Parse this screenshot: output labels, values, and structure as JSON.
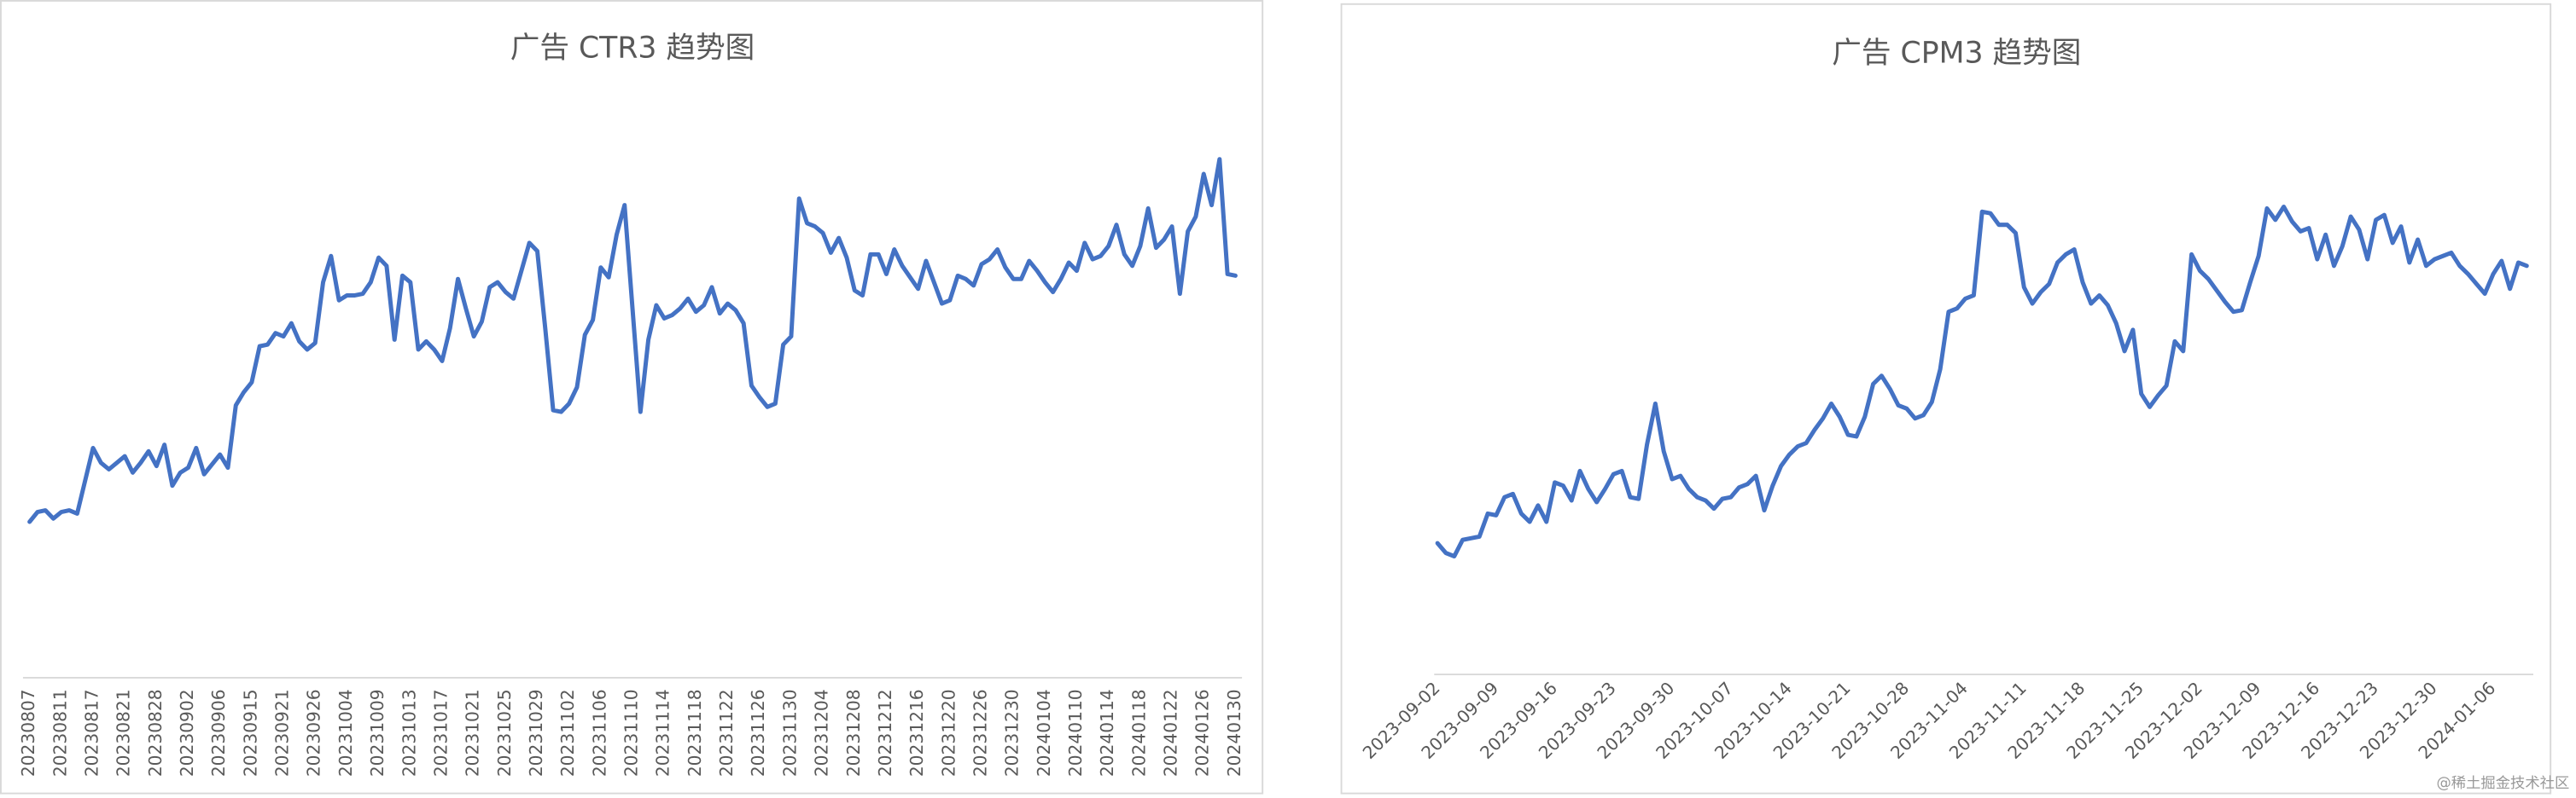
{
  "chart_data": [
    {
      "type": "line",
      "title": "广告 CTR3 趋势图",
      "color": "#4472c4",
      "ylim": [
        0,
        400
      ],
      "categories": [
        "20230807",
        null,
        null,
        null,
        "20230811",
        null,
        null,
        null,
        "20230817",
        null,
        null,
        null,
        "20230821",
        null,
        null,
        null,
        "20230828",
        null,
        null,
        null,
        "20230902",
        null,
        null,
        null,
        "20230906",
        null,
        null,
        null,
        "20230915",
        null,
        null,
        null,
        "20230921",
        null,
        null,
        null,
        "20230926",
        null,
        null,
        null,
        "20231004",
        null,
        null,
        null,
        "20231009",
        null,
        null,
        null,
        "20231013",
        null,
        null,
        null,
        "20231017",
        null,
        null,
        null,
        "20231021",
        null,
        null,
        null,
        "20231025",
        null,
        null,
        null,
        "20231029",
        null,
        null,
        null,
        "20231102",
        null,
        null,
        null,
        "20231106",
        null,
        null,
        null,
        "20231110",
        null,
        null,
        null,
        "20231114",
        null,
        null,
        null,
        "20231118",
        null,
        null,
        null,
        "20231122",
        null,
        null,
        null,
        "20231126",
        null,
        null,
        null,
        "20231130",
        null,
        null,
        null,
        "20231204",
        null,
        null,
        null,
        "20231208",
        null,
        null,
        null,
        "20231212",
        null,
        null,
        null,
        "20231216",
        null,
        null,
        null,
        "20231220",
        null,
        null,
        null,
        "20231226",
        null,
        null,
        null,
        "20231230",
        null,
        null,
        null,
        "20240104",
        null,
        null,
        null,
        "20240110",
        null,
        null,
        null,
        "20240114",
        null,
        null,
        null,
        "20240118",
        null,
        null,
        null,
        "20240122",
        null,
        null,
        null,
        "20240126",
        null,
        null,
        null,
        "20240130"
      ],
      "values": [
        95,
        101,
        102,
        97,
        101,
        102,
        100,
        120,
        140,
        131,
        127,
        131,
        135,
        125,
        131,
        138,
        129,
        142,
        117,
        125,
        128,
        140,
        124,
        130,
        136,
        128,
        166,
        174,
        180,
        202,
        203,
        210,
        208,
        216,
        205,
        200,
        204,
        241,
        257,
        230,
        233,
        233,
        234,
        241,
        256,
        251,
        206,
        245,
        241,
        200,
        205,
        200,
        193,
        213,
        243,
        225,
        208,
        217,
        238,
        241,
        235,
        231,
        248,
        265,
        260,
        213,
        163,
        162,
        167,
        177,
        209,
        218,
        250,
        244,
        270,
        288,
        225,
        162,
        206,
        227,
        219,
        221,
        225,
        231,
        223,
        227,
        238,
        222,
        228,
        224,
        216,
        178,
        171,
        165,
        167,
        203,
        208,
        292,
        277,
        275,
        271,
        259,
        268,
        256,
        236,
        233,
        258,
        258,
        246,
        261,
        251,
        244,
        237,
        254,
        241,
        228,
        230,
        245,
        243,
        239,
        252,
        255,
        261,
        250,
        243,
        243,
        254,
        248,
        241,
        235,
        243,
        253,
        248,
        265,
        255,
        257,
        263,
        276,
        258,
        251,
        263,
        286,
        262,
        267,
        275,
        234,
        272,
        281,
        307,
        288,
        316,
        246,
        245
      ]
    },
    {
      "type": "line",
      "title": "广告 CPM3 趋势图",
      "color": "#4472c4",
      "ylim": [
        0,
        400
      ],
      "categories": [
        "2023-09-02",
        null,
        null,
        null,
        null,
        null,
        null,
        "2023-09-09",
        null,
        null,
        null,
        null,
        null,
        null,
        "2023-09-16",
        null,
        null,
        null,
        null,
        null,
        null,
        "2023-09-23",
        null,
        null,
        null,
        null,
        null,
        null,
        "2023-09-30",
        null,
        null,
        null,
        null,
        null,
        null,
        "2023-10-07",
        null,
        null,
        null,
        null,
        null,
        null,
        "2023-10-14",
        null,
        null,
        null,
        null,
        null,
        null,
        "2023-10-21",
        null,
        null,
        null,
        null,
        null,
        null,
        "2023-10-28",
        null,
        null,
        null,
        null,
        null,
        null,
        "2023-11-04",
        null,
        null,
        null,
        null,
        null,
        null,
        "2023-11-11",
        null,
        null,
        null,
        null,
        null,
        null,
        "2023-11-18",
        null,
        null,
        null,
        null,
        null,
        null,
        "2023-11-25",
        null,
        null,
        null,
        null,
        null,
        null,
        "2023-12-02",
        null,
        null,
        null,
        null,
        null,
        null,
        "2023-12-09",
        null,
        null,
        null,
        null,
        null,
        null,
        "2023-12-16",
        null,
        null,
        null,
        null,
        null,
        null,
        "2023-12-23",
        null,
        null,
        null,
        null,
        null,
        null,
        "2023-12-30",
        null,
        null,
        null,
        null,
        null,
        null,
        "2024-01-06",
        null,
        null,
        null,
        null
      ],
      "values": [
        80,
        74,
        72,
        82,
        83,
        84,
        98,
        97,
        108,
        110,
        98,
        93,
        103,
        93,
        117,
        115,
        106,
        124,
        113,
        105,
        113,
        122,
        124,
        108,
        107,
        140,
        165,
        136,
        119,
        121,
        113,
        108,
        106,
        101,
        107,
        108,
        114,
        116,
        121,
        100,
        115,
        127,
        134,
        139,
        141,
        149,
        156,
        165,
        157,
        146,
        145,
        157,
        177,
        182,
        174,
        164,
        162,
        156,
        158,
        166,
        186,
        221,
        223,
        229,
        231,
        282,
        281,
        274,
        274,
        269,
        236,
        226,
        233,
        238,
        251,
        256,
        259,
        239,
        226,
        231,
        225,
        214,
        197,
        210,
        171,
        163,
        170,
        176,
        203,
        197,
        256,
        246,
        241,
        234,
        227,
        221,
        222,
        239,
        255,
        284,
        277,
        285,
        276,
        270,
        272,
        253,
        268,
        249,
        261,
        279,
        271,
        253,
        277,
        280,
        263,
        273,
        251,
        265,
        249,
        253,
        255,
        257,
        249,
        244,
        238,
        232,
        244,
        252,
        235,
        251,
        249
      ]
    }
  ],
  "watermark": "@稀土掘金技术社区"
}
